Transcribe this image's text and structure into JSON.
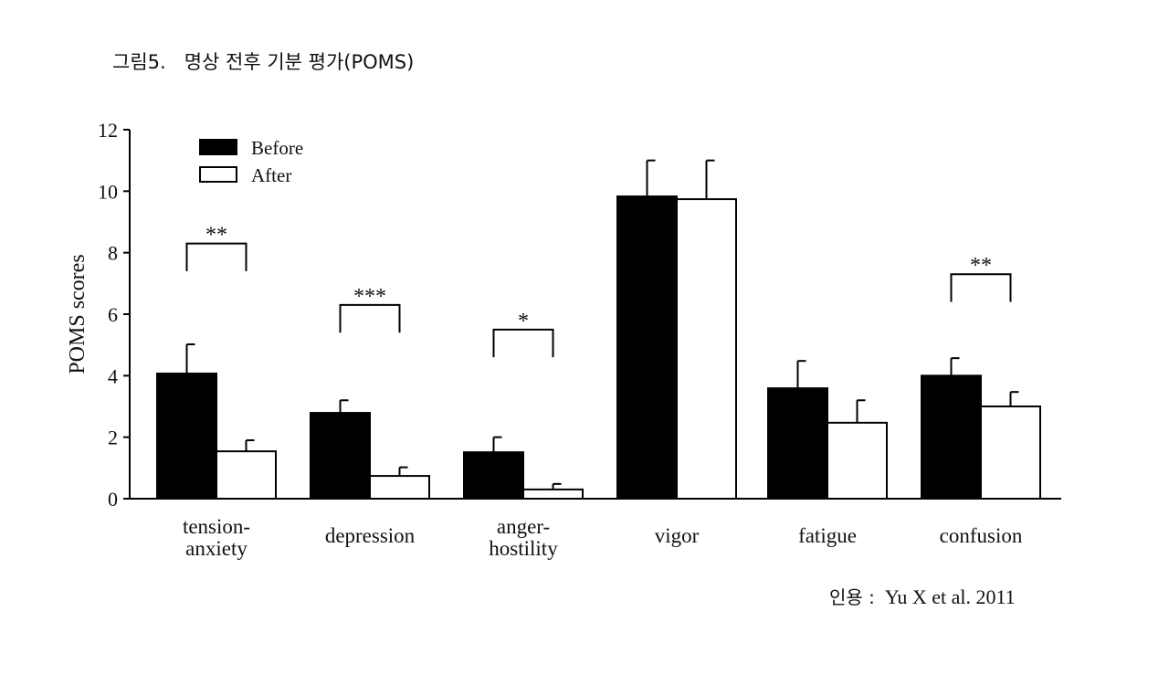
{
  "caption": {
    "title": "그림5.   명상 전후 기분 평가(POMS)",
    "citation_label": "인용 :",
    "citation": "Yu X et al. 2011"
  },
  "chart_data": {
    "type": "bar",
    "title": "",
    "xlabel": "",
    "ylabel": "POMS scores",
    "ylim": [
      0,
      12
    ],
    "yticks": [
      0,
      2,
      4,
      6,
      8,
      10,
      12
    ],
    "categories": [
      [
        "tension-",
        "anxiety"
      ],
      [
        "depression"
      ],
      [
        "anger-",
        "hostility"
      ],
      [
        "vigor"
      ],
      [
        "fatigue"
      ],
      [
        "confusion"
      ]
    ],
    "series": [
      {
        "name": "Before",
        "color": "#000000",
        "values": [
          4.07,
          2.79,
          1.51,
          9.83,
          3.59,
          4.0
        ],
        "error": [
          0.95,
          0.41,
          0.49,
          1.17,
          0.89,
          0.57
        ]
      },
      {
        "name": "After",
        "color": "#ffffff",
        "values": [
          1.54,
          0.74,
          0.3,
          9.74,
          2.47,
          3.0
        ],
        "error": [
          0.36,
          0.28,
          0.18,
          1.26,
          0.73,
          0.47
        ]
      }
    ],
    "significance": [
      {
        "category": 0,
        "label": "**",
        "level": 8.3,
        "leg": 7.4
      },
      {
        "category": 1,
        "label": "***",
        "level": 6.3,
        "leg": 5.4
      },
      {
        "category": 2,
        "label": "*",
        "level": 5.5,
        "leg": 4.6
      },
      {
        "category": 5,
        "label": "**",
        "level": 7.3,
        "leg": 6.4
      }
    ],
    "legend_position": "top-left",
    "grid": false
  }
}
